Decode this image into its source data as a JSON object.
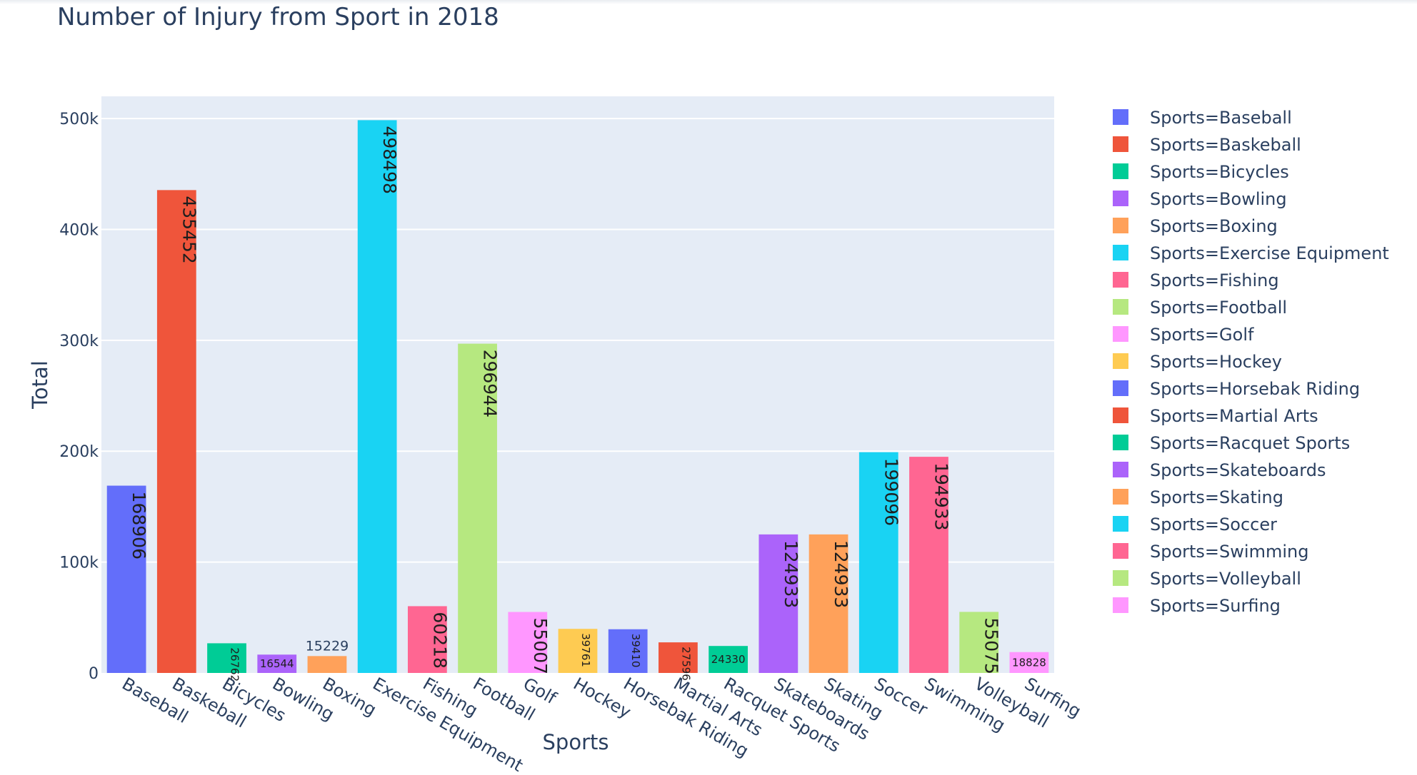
{
  "chart_data": {
    "type": "bar",
    "title": "Number of Injury from Sport in 2018",
    "xlabel": "Sports",
    "ylabel": "Total",
    "ylim": [
      0,
      520000
    ],
    "yticks": [
      0,
      100000,
      200000,
      300000,
      400000,
      500000
    ],
    "ytick_labels": [
      "0",
      "100k",
      "200k",
      "300k",
      "400k",
      "500k"
    ],
    "grid": true,
    "legend": "right",
    "legend_prefix": "Sports=",
    "categories": [
      "Baseball",
      "Baskeball",
      "Bicycles",
      "Bowling",
      "Boxing",
      "Exercise Equipment",
      "Fishing",
      "Football",
      "Golf",
      "Hockey",
      "Horsebak Riding",
      "Martial Arts",
      "Racquet Sports",
      "Skateboards",
      "Skating",
      "Soccer",
      "Swimming",
      "Volleyball",
      "Surfing"
    ],
    "values": [
      168906,
      435452,
      26762,
      16544,
      15229,
      498498,
      60218,
      296944,
      55007,
      39761,
      39410,
      27596,
      24330,
      124933,
      124933,
      199096,
      194933,
      55075,
      18828
    ],
    "legend_labels": [
      "Sports=Baseball",
      "Sports=Baskeball",
      "Sports=Bicycles",
      "Sports=Bowling",
      "Sports=Boxing",
      "Sports=Exercise Equipment",
      "Sports=Fishing",
      "Sports=Football",
      "Sports=Golf",
      "Sports=Hockey",
      "Sports=Horsebak Riding",
      "Sports=Martial Arts",
      "Sports=Racquet Sports",
      "Sports=Skateboards",
      "Sports=Skating",
      "Sports=Soccer",
      "Sports=Swimming",
      "Sports=Volleyball",
      "Sports=Surfing"
    ],
    "colors": [
      "#636efa",
      "#EF553B",
      "#00cc96",
      "#ab63fa",
      "#FFA15A",
      "#19d3f3",
      "#FF6692",
      "#B6E880",
      "#FF97FF",
      "#FECB52",
      "#636efa",
      "#EF553B",
      "#00cc96",
      "#ab63fa",
      "#FFA15A",
      "#19d3f3",
      "#FF6692",
      "#B6E880",
      "#FF97FF"
    ],
    "plot_background": "#e5ecf6",
    "grid_color": "#ffffff"
  }
}
